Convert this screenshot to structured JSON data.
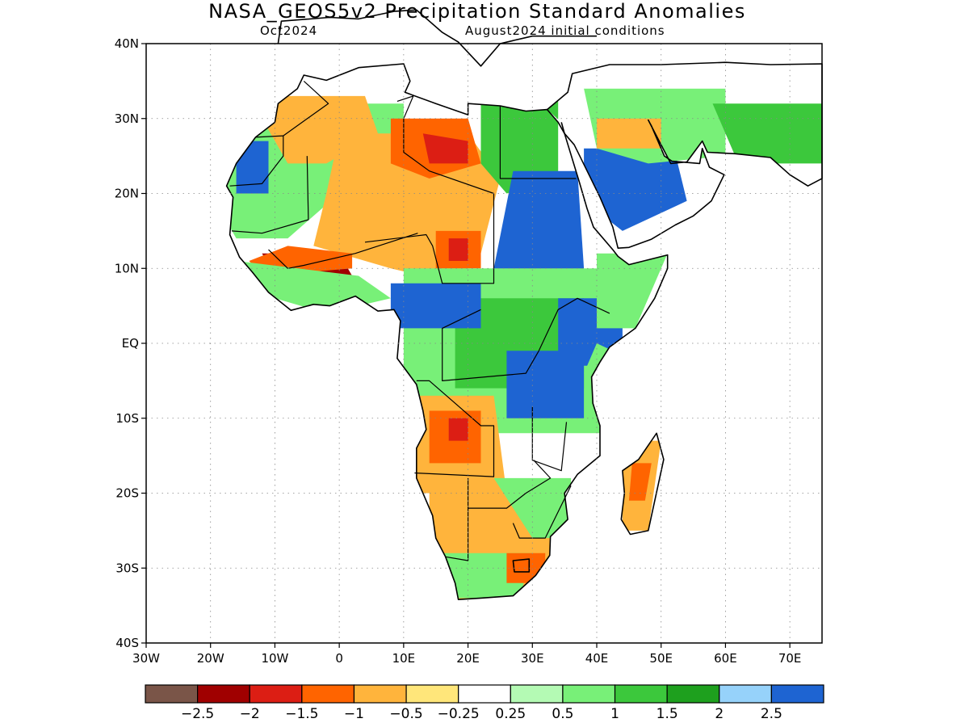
{
  "header": {
    "title": "NASA_GEOS5v2 Precipitation Standard Anomalies",
    "forecast_month": "Oct2024",
    "initial_conditions": "August2024 initial conditions"
  },
  "map": {
    "region": "Africa",
    "lat_range": [
      -40,
      40
    ],
    "lon_range": [
      -30,
      75
    ],
    "lat_ticks": [
      "40N",
      "30N",
      "20N",
      "10N",
      "EQ",
      "10S",
      "20S",
      "30S",
      "40S"
    ],
    "lon_ticks": [
      "30W",
      "20W",
      "10W",
      "0",
      "10E",
      "20E",
      "30E",
      "40E",
      "50E",
      "60E",
      "70E"
    ],
    "grid": "dotted"
  },
  "legend": {
    "colors": [
      "#7a5548",
      "#a00000",
      "#dc1e14",
      "#ff6400",
      "#ffb43c",
      "#ffe67a",
      "#ffffff",
      "#b4fab4",
      "#78f078",
      "#3cc83c",
      "#1ea01e",
      "#96d2fa",
      "#1e64d2"
    ],
    "labels": [
      "−2.5",
      "−2",
      "−1.5",
      "−1",
      "−0.5",
      "−0.25",
      "0.25",
      "0.5",
      "1",
      "1.5",
      "2",
      "2.5"
    ]
  },
  "colors": {
    "coast": "#000000",
    "grid": "#888888"
  }
}
